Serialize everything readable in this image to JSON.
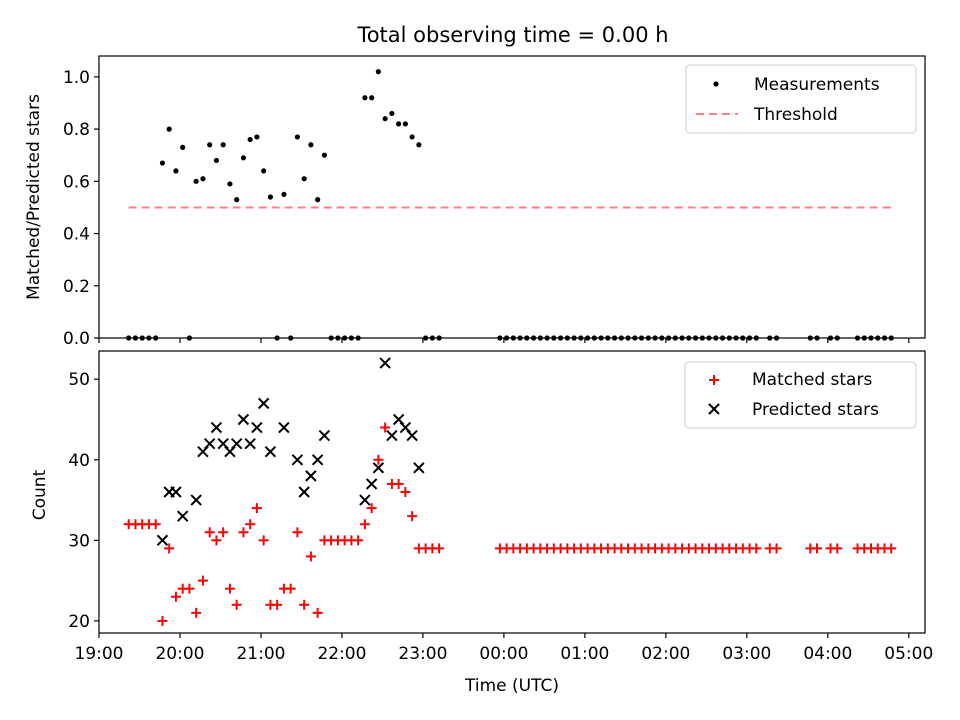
{
  "title": "Total observing time = 0.00 h",
  "chart_data": [
    {
      "type": "scatter",
      "ylabel": "Matched/Predicted stars",
      "xlabel": "",
      "ylim": [
        0.0,
        1.08
      ],
      "xlim": [
        "19:00",
        "05:12"
      ],
      "yticks": [
        "0.0",
        "0.2",
        "0.4",
        "0.6",
        "0.8",
        "1.0"
      ],
      "legend_position": "top-right",
      "grid": false,
      "legend": [
        {
          "label": "Measurements",
          "color": "#000000"
        },
        {
          "label": "Threshold",
          "color": "#ff7f7f"
        }
      ],
      "threshold": {
        "value": 0.5,
        "x_start": "19:22",
        "x_end": "04:48"
      },
      "measurements": [
        [
          "19:22",
          0
        ],
        [
          "19:27",
          0
        ],
        [
          "19:32",
          0
        ],
        [
          "19:37",
          0
        ],
        [
          "19:42",
          0
        ],
        [
          "19:47",
          0.67
        ],
        [
          "19:52",
          0.8
        ],
        [
          "19:57",
          0.64
        ],
        [
          "20:02",
          0.73
        ],
        [
          "20:07",
          0
        ],
        [
          "20:12",
          0.6
        ],
        [
          "20:17",
          0.61
        ],
        [
          "20:22",
          0.74
        ],
        [
          "20:27",
          0.68
        ],
        [
          "20:32",
          0.74
        ],
        [
          "20:37",
          0.59
        ],
        [
          "20:42",
          0.53
        ],
        [
          "20:47",
          0.69
        ],
        [
          "20:52",
          0.76
        ],
        [
          "20:57",
          0.77
        ],
        [
          "21:02",
          0.64
        ],
        [
          "21:07",
          0.54
        ],
        [
          "21:12",
          0
        ],
        [
          "21:17",
          0.55
        ],
        [
          "21:22",
          0
        ],
        [
          "21:27",
          0.77
        ],
        [
          "21:32",
          0.61
        ],
        [
          "21:37",
          0.74
        ],
        [
          "21:42",
          0.53
        ],
        [
          "21:47",
          0.7
        ],
        [
          "21:52",
          0
        ],
        [
          "21:57",
          0
        ],
        [
          "22:02",
          0
        ],
        [
          "22:07",
          0
        ],
        [
          "22:12",
          0
        ],
        [
          "22:17",
          0.92
        ],
        [
          "22:22",
          0.92
        ],
        [
          "22:27",
          1.02
        ],
        [
          "22:32",
          0.84
        ],
        [
          "22:37",
          0.86
        ],
        [
          "22:42",
          0.82
        ],
        [
          "22:47",
          0.82
        ],
        [
          "22:52",
          0.77
        ],
        [
          "22:57",
          0.74
        ],
        [
          "23:02",
          0
        ],
        [
          "23:07",
          0
        ],
        [
          "23:12",
          0
        ],
        [
          "23:57",
          0
        ],
        [
          "00:02",
          0
        ],
        [
          "00:07",
          0
        ],
        [
          "00:12",
          0
        ],
        [
          "00:17",
          0
        ],
        [
          "00:22",
          0
        ],
        [
          "00:27",
          0
        ],
        [
          "00:32",
          0
        ],
        [
          "00:37",
          0
        ],
        [
          "00:42",
          0
        ],
        [
          "00:47",
          0
        ],
        [
          "00:52",
          0
        ],
        [
          "00:57",
          0
        ],
        [
          "01:02",
          0
        ],
        [
          "01:07",
          0
        ],
        [
          "01:12",
          0
        ],
        [
          "01:17",
          0
        ],
        [
          "01:22",
          0
        ],
        [
          "01:27",
          0
        ],
        [
          "01:32",
          0
        ],
        [
          "01:37",
          0
        ],
        [
          "01:42",
          0
        ],
        [
          "01:47",
          0
        ],
        [
          "01:52",
          0
        ],
        [
          "01:57",
          0
        ],
        [
          "02:02",
          0
        ],
        [
          "02:07",
          0
        ],
        [
          "02:12",
          0
        ],
        [
          "02:17",
          0
        ],
        [
          "02:22",
          0
        ],
        [
          "02:27",
          0
        ],
        [
          "02:32",
          0
        ],
        [
          "02:37",
          0
        ],
        [
          "02:42",
          0
        ],
        [
          "02:47",
          0
        ],
        [
          "02:52",
          0
        ],
        [
          "02:57",
          0
        ],
        [
          "03:02",
          0
        ],
        [
          "03:07",
          0
        ],
        [
          "03:17",
          0
        ],
        [
          "03:22",
          0
        ],
        [
          "03:47",
          0
        ],
        [
          "03:52",
          0
        ],
        [
          "04:02",
          0
        ],
        [
          "04:07",
          0
        ],
        [
          "04:22",
          0
        ],
        [
          "04:27",
          0
        ],
        [
          "04:32",
          0
        ],
        [
          "04:37",
          0
        ],
        [
          "04:42",
          0
        ],
        [
          "04:47",
          0
        ]
      ]
    },
    {
      "type": "scatter",
      "ylabel": "Count",
      "xlabel": "Time (UTC)",
      "ylim": [
        18.5,
        53.5
      ],
      "xlim": [
        "19:00",
        "05:12"
      ],
      "yticks": [
        "20",
        "30",
        "40",
        "50"
      ],
      "xticks": [
        "19:00",
        "20:00",
        "21:00",
        "22:00",
        "23:00",
        "00:00",
        "01:00",
        "02:00",
        "03:00",
        "04:00",
        "05:00"
      ],
      "legend_position": "top-right",
      "grid": false,
      "legend": [
        {
          "label": "Matched stars",
          "color": "#ff0000"
        },
        {
          "label": "Predicted stars",
          "color": "#000000"
        }
      ],
      "matched": [
        [
          "19:22",
          32
        ],
        [
          "19:27",
          32
        ],
        [
          "19:32",
          32
        ],
        [
          "19:37",
          32
        ],
        [
          "19:42",
          32
        ],
        [
          "19:47",
          20
        ],
        [
          "19:52",
          29
        ],
        [
          "19:57",
          23
        ],
        [
          "20:02",
          24
        ],
        [
          "20:07",
          24
        ],
        [
          "20:12",
          21
        ],
        [
          "20:17",
          25
        ],
        [
          "20:22",
          31
        ],
        [
          "20:27",
          30
        ],
        [
          "20:32",
          31
        ],
        [
          "20:37",
          24
        ],
        [
          "20:42",
          22
        ],
        [
          "20:47",
          31
        ],
        [
          "20:52",
          32
        ],
        [
          "20:57",
          34
        ],
        [
          "21:02",
          30
        ],
        [
          "21:07",
          22
        ],
        [
          "21:12",
          22
        ],
        [
          "21:17",
          24
        ],
        [
          "21:22",
          24
        ],
        [
          "21:27",
          31
        ],
        [
          "21:32",
          22
        ],
        [
          "21:37",
          28
        ],
        [
          "21:42",
          21
        ],
        [
          "21:47",
          30
        ],
        [
          "21:52",
          30
        ],
        [
          "21:57",
          30
        ],
        [
          "22:02",
          30
        ],
        [
          "22:07",
          30
        ],
        [
          "22:12",
          30
        ],
        [
          "22:17",
          32
        ],
        [
          "22:22",
          34
        ],
        [
          "22:27",
          40
        ],
        [
          "22:32",
          44
        ],
        [
          "22:37",
          37
        ],
        [
          "22:42",
          37
        ],
        [
          "22:47",
          36
        ],
        [
          "22:52",
          33
        ],
        [
          "22:57",
          29
        ],
        [
          "23:02",
          29
        ],
        [
          "23:07",
          29
        ],
        [
          "23:12",
          29
        ],
        [
          "23:57",
          29
        ],
        [
          "00:02",
          29
        ],
        [
          "00:07",
          29
        ],
        [
          "00:12",
          29
        ],
        [
          "00:17",
          29
        ],
        [
          "00:22",
          29
        ],
        [
          "00:27",
          29
        ],
        [
          "00:32",
          29
        ],
        [
          "00:37",
          29
        ],
        [
          "00:42",
          29
        ],
        [
          "00:47",
          29
        ],
        [
          "00:52",
          29
        ],
        [
          "00:57",
          29
        ],
        [
          "01:02",
          29
        ],
        [
          "01:07",
          29
        ],
        [
          "01:12",
          29
        ],
        [
          "01:17",
          29
        ],
        [
          "01:22",
          29
        ],
        [
          "01:27",
          29
        ],
        [
          "01:32",
          29
        ],
        [
          "01:37",
          29
        ],
        [
          "01:42",
          29
        ],
        [
          "01:47",
          29
        ],
        [
          "01:52",
          29
        ],
        [
          "01:57",
          29
        ],
        [
          "02:02",
          29
        ],
        [
          "02:07",
          29
        ],
        [
          "02:12",
          29
        ],
        [
          "02:17",
          29
        ],
        [
          "02:22",
          29
        ],
        [
          "02:27",
          29
        ],
        [
          "02:32",
          29
        ],
        [
          "02:37",
          29
        ],
        [
          "02:42",
          29
        ],
        [
          "02:47",
          29
        ],
        [
          "02:52",
          29
        ],
        [
          "02:57",
          29
        ],
        [
          "03:02",
          29
        ],
        [
          "03:07",
          29
        ],
        [
          "03:17",
          29
        ],
        [
          "03:22",
          29
        ],
        [
          "03:47",
          29
        ],
        [
          "03:52",
          29
        ],
        [
          "04:02",
          29
        ],
        [
          "04:07",
          29
        ],
        [
          "04:22",
          29
        ],
        [
          "04:27",
          29
        ],
        [
          "04:32",
          29
        ],
        [
          "04:37",
          29
        ],
        [
          "04:42",
          29
        ],
        [
          "04:47",
          29
        ]
      ],
      "predicted": [
        [
          "19:47",
          30
        ],
        [
          "19:52",
          36
        ],
        [
          "19:57",
          36
        ],
        [
          "20:02",
          33
        ],
        [
          "20:12",
          35
        ],
        [
          "20:17",
          41
        ],
        [
          "20:22",
          42
        ],
        [
          "20:27",
          44
        ],
        [
          "20:32",
          42
        ],
        [
          "20:37",
          41
        ],
        [
          "20:42",
          42
        ],
        [
          "20:47",
          45
        ],
        [
          "20:52",
          42
        ],
        [
          "20:57",
          44
        ],
        [
          "21:02",
          47
        ],
        [
          "21:07",
          41
        ],
        [
          "21:17",
          44
        ],
        [
          "21:27",
          40
        ],
        [
          "21:32",
          36
        ],
        [
          "21:37",
          38
        ],
        [
          "21:42",
          40
        ],
        [
          "21:47",
          43
        ],
        [
          "22:17",
          35
        ],
        [
          "22:22",
          37
        ],
        [
          "22:27",
          39
        ],
        [
          "22:32",
          52
        ],
        [
          "22:37",
          43
        ],
        [
          "22:42",
          45
        ],
        [
          "22:47",
          44
        ],
        [
          "22:52",
          43
        ],
        [
          "22:57",
          39
        ]
      ]
    }
  ]
}
